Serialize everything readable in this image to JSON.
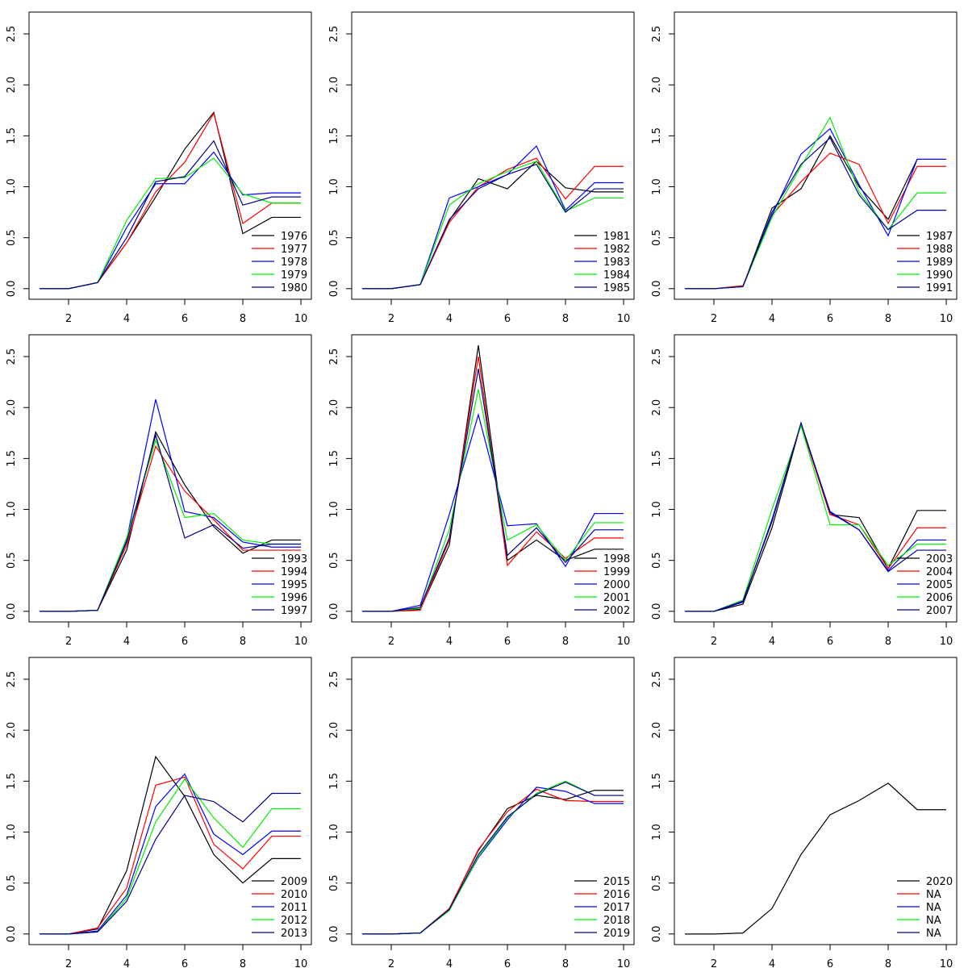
{
  "chart_data": [
    {
      "type": "line",
      "x": [
        1,
        2,
        3,
        4,
        5,
        6,
        7,
        8,
        9,
        10
      ],
      "xlim": [
        0.64,
        10.36
      ],
      "xticks": [
        2,
        4,
        6,
        8,
        10
      ],
      "ylim": [
        -0.104,
        2.714
      ],
      "yticks": [
        {
          "value": 0,
          "label": "0.0"
        },
        0.5,
        {
          "value": 1,
          "label": "1.0"
        },
        1.5,
        {
          "value": 2,
          "label": "2.0"
        },
        2.5
      ],
      "legend": "bottomright",
      "series": [
        {
          "name": "1976",
          "color": "#000000",
          "values": [
            0,
            0,
            0.06,
            0.45,
            0.9,
            1.37,
            1.73,
            0.54,
            0.7,
            0.7
          ]
        },
        {
          "name": "1977",
          "color": "#ff0000",
          "values": [
            0,
            0,
            0.06,
            0.45,
            0.95,
            1.24,
            1.72,
            0.64,
            0.84,
            0.84
          ]
        },
        {
          "name": "1978",
          "color": "#0000ff",
          "values": [
            0,
            0,
            0.06,
            0.6,
            1.03,
            1.03,
            1.34,
            0.92,
            0.94,
            0.94
          ]
        },
        {
          "name": "1979",
          "color": "#00ee00",
          "values": [
            0,
            0,
            0.06,
            0.67,
            1.08,
            1.09,
            1.28,
            0.93,
            0.84,
            0.84
          ]
        },
        {
          "name": "1980",
          "color": "#00008b",
          "values": [
            0,
            0,
            0.06,
            0.5,
            1.05,
            1.1,
            1.45,
            0.82,
            0.9,
            0.9
          ]
        }
      ]
    },
    {
      "type": "line",
      "x": [
        1,
        2,
        3,
        4,
        5,
        6,
        7,
        8,
        9,
        10
      ],
      "xlim": [
        0.64,
        10.36
      ],
      "xticks": [
        2,
        4,
        6,
        8,
        10
      ],
      "ylim": [
        -0.104,
        2.714
      ],
      "yticks": [
        {
          "value": 0,
          "label": "0.0"
        },
        0.5,
        {
          "value": 1,
          "label": "1.0"
        },
        1.5,
        {
          "value": 2,
          "label": "2.0"
        },
        2.5
      ],
      "legend": "bottomright",
      "series": [
        {
          "name": "1981",
          "color": "#000000",
          "values": [
            0,
            0,
            0.04,
            0.67,
            1.08,
            0.98,
            1.25,
            0.99,
            0.95,
            0.95
          ]
        },
        {
          "name": "1982",
          "color": "#ff0000",
          "values": [
            0,
            0,
            0.04,
            0.65,
            1.0,
            1.17,
            1.28,
            0.88,
            1.2,
            1.2
          ]
        },
        {
          "name": "1983",
          "color": "#0000ff",
          "values": [
            0,
            0,
            0.04,
            0.89,
            1.0,
            1.12,
            1.4,
            0.77,
            1.04,
            1.04
          ]
        },
        {
          "name": "1984",
          "color": "#00ee00",
          "values": [
            0,
            0,
            0.04,
            0.82,
            1.03,
            1.15,
            1.25,
            0.76,
            0.89,
            0.89
          ]
        },
        {
          "name": "1985",
          "color": "#00008b",
          "values": [
            0,
            0,
            0.04,
            0.68,
            0.98,
            1.12,
            1.22,
            0.75,
            0.98,
            0.98
          ]
        }
      ]
    },
    {
      "type": "line",
      "x": [
        1,
        2,
        3,
        4,
        5,
        6,
        7,
        8,
        9,
        10
      ],
      "xlim": [
        0.64,
        10.36
      ],
      "xticks": [
        2,
        4,
        6,
        8,
        10
      ],
      "ylim": [
        -0.104,
        2.714
      ],
      "yticks": [
        {
          "value": 0,
          "label": "0.0"
        },
        0.5,
        {
          "value": 1,
          "label": "1.0"
        },
        1.5,
        {
          "value": 2,
          "label": "2.0"
        },
        2.5
      ],
      "legend": "bottomright",
      "series": [
        {
          "name": "1987",
          "color": "#000000",
          "values": [
            0,
            0,
            0.02,
            0.79,
            0.98,
            1.5,
            1.0,
            0.68,
            1.27,
            1.27
          ]
        },
        {
          "name": "1988",
          "color": "#ff0000",
          "values": [
            0,
            0,
            0.03,
            0.72,
            1.05,
            1.33,
            1.22,
            0.64,
            1.2,
            1.2
          ]
        },
        {
          "name": "1989",
          "color": "#0000ff",
          "values": [
            0,
            0,
            0.02,
            0.72,
            1.32,
            1.57,
            1.02,
            0.52,
            1.27,
            1.27
          ]
        },
        {
          "name": "1990",
          "color": "#00ee00",
          "values": [
            0,
            0,
            0.02,
            0.7,
            1.2,
            1.68,
            0.95,
            0.58,
            0.94,
            0.94
          ]
        },
        {
          "name": "1991",
          "color": "#00008b",
          "values": [
            0,
            0,
            0.02,
            0.75,
            1.22,
            1.48,
            0.92,
            0.58,
            0.77,
            0.77
          ]
        }
      ]
    },
    {
      "type": "line",
      "x": [
        1,
        2,
        3,
        4,
        5,
        6,
        7,
        8,
        9,
        10
      ],
      "xlim": [
        0.64,
        10.36
      ],
      "xticks": [
        2,
        4,
        6,
        8,
        10
      ],
      "ylim": [
        -0.104,
        2.714
      ],
      "yticks": [
        {
          "value": 0,
          "label": "0.0"
        },
        0.5,
        {
          "value": 1,
          "label": "1.0"
        },
        1.5,
        {
          "value": 2,
          "label": "2.0"
        },
        2.5
      ],
      "legend": "bottomright",
      "series": [
        {
          "name": "1993",
          "color": "#000000",
          "values": [
            0,
            0,
            0.01,
            0.6,
            1.76,
            1.24,
            0.83,
            0.57,
            0.7,
            0.7
          ]
        },
        {
          "name": "1994",
          "color": "#ff0000",
          "values": [
            0,
            0,
            0.01,
            0.65,
            1.62,
            1.18,
            0.9,
            0.6,
            0.6,
            0.6
          ]
        },
        {
          "name": "1995",
          "color": "#0000ff",
          "values": [
            0,
            0,
            0.01,
            0.7,
            2.08,
            0.98,
            0.92,
            0.68,
            0.63,
            0.63
          ]
        },
        {
          "name": "1996",
          "color": "#00ee00",
          "values": [
            0,
            0,
            0.01,
            0.72,
            1.68,
            0.92,
            0.96,
            0.7,
            0.66,
            0.66
          ]
        },
        {
          "name": "1997",
          "color": "#00008b",
          "values": [
            0,
            0,
            0.01,
            0.68,
            1.73,
            0.72,
            0.85,
            0.62,
            0.66,
            0.66
          ]
        }
      ]
    },
    {
      "type": "line",
      "x": [
        1,
        2,
        3,
        4,
        5,
        6,
        7,
        8,
        9,
        10
      ],
      "xlim": [
        0.64,
        10.36
      ],
      "xticks": [
        2,
        4,
        6,
        8,
        10
      ],
      "ylim": [
        -0.104,
        2.714
      ],
      "yticks": [
        {
          "value": 0,
          "label": "0.0"
        },
        0.5,
        {
          "value": 1,
          "label": "1.0"
        },
        1.5,
        {
          "value": 2,
          "label": "2.0"
        },
        2.5
      ],
      "legend": "bottomright",
      "series": [
        {
          "name": "1998",
          "color": "#000000",
          "values": [
            0,
            0,
            0.02,
            0.65,
            2.61,
            0.5,
            0.7,
            0.5,
            0.61,
            0.61
          ]
        },
        {
          "name": "1999",
          "color": "#ff0000",
          "values": [
            0,
            0,
            0.01,
            0.7,
            2.5,
            0.45,
            0.78,
            0.52,
            0.72,
            0.72
          ]
        },
        {
          "name": "2000",
          "color": "#0000ff",
          "values": [
            0,
            0,
            0.06,
            0.95,
            1.93,
            0.84,
            0.86,
            0.44,
            0.96,
            0.96
          ]
        },
        {
          "name": "2001",
          "color": "#00ee00",
          "values": [
            0,
            0,
            0.03,
            0.8,
            2.18,
            0.7,
            0.85,
            0.5,
            0.87,
            0.87
          ]
        },
        {
          "name": "2002",
          "color": "#00008b",
          "values": [
            0,
            0,
            0.04,
            0.72,
            2.38,
            0.55,
            0.82,
            0.48,
            0.8,
            0.8
          ]
        }
      ]
    },
    {
      "type": "line",
      "x": [
        1,
        2,
        3,
        4,
        5,
        6,
        7,
        8,
        9,
        10
      ],
      "xlim": [
        0.64,
        10.36
      ],
      "xticks": [
        2,
        4,
        6,
        8,
        10
      ],
      "ylim": [
        -0.104,
        2.714
      ],
      "yticks": [
        {
          "value": 0,
          "label": "0.0"
        },
        0.5,
        {
          "value": 1,
          "label": "1.0"
        },
        1.5,
        {
          "value": 2,
          "label": "2.0"
        },
        2.5
      ],
      "legend": "bottomright",
      "series": [
        {
          "name": "2003",
          "color": "#000000",
          "values": [
            0,
            0,
            0.07,
            0.82,
            1.84,
            0.95,
            0.92,
            0.42,
            0.99,
            0.99
          ]
        },
        {
          "name": "2004",
          "color": "#ff0000",
          "values": [
            0,
            0,
            0.09,
            0.9,
            1.83,
            0.95,
            0.85,
            0.42,
            0.82,
            0.82
          ]
        },
        {
          "name": "2005",
          "color": "#0000ff",
          "values": [
            0,
            0,
            0.09,
            0.9,
            1.84,
            0.98,
            0.8,
            0.4,
            0.7,
            0.7
          ]
        },
        {
          "name": "2006",
          "color": "#00ee00",
          "values": [
            0,
            0,
            0.11,
            1.0,
            1.82,
            0.85,
            0.85,
            0.45,
            0.66,
            0.66
          ]
        },
        {
          "name": "2007",
          "color": "#00008b",
          "values": [
            0,
            0,
            0.1,
            0.88,
            1.85,
            0.97,
            0.8,
            0.39,
            0.6,
            0.6
          ]
        }
      ]
    },
    {
      "type": "line",
      "x": [
        1,
        2,
        3,
        4,
        5,
        6,
        7,
        8,
        9,
        10
      ],
      "xlim": [
        0.64,
        10.36
      ],
      "xticks": [
        2,
        4,
        6,
        8,
        10
      ],
      "ylim": [
        -0.104,
        2.714
      ],
      "yticks": [
        {
          "value": 0,
          "label": "0.0"
        },
        0.5,
        {
          "value": 1,
          "label": "1.0"
        },
        1.5,
        {
          "value": 2,
          "label": "2.0"
        },
        2.5
      ],
      "legend": "bottomright",
      "series": [
        {
          "name": "2009",
          "color": "#000000",
          "values": [
            0,
            0,
            0.05,
            0.62,
            1.74,
            1.35,
            0.78,
            0.5,
            0.74,
            0.74
          ]
        },
        {
          "name": "2010",
          "color": "#ff0000",
          "values": [
            0,
            0,
            0.06,
            0.45,
            1.46,
            1.54,
            0.88,
            0.64,
            0.96,
            0.96
          ]
        },
        {
          "name": "2011",
          "color": "#0000ff",
          "values": [
            0,
            0,
            0.03,
            0.38,
            1.25,
            1.57,
            0.98,
            0.78,
            1.01,
            1.01
          ]
        },
        {
          "name": "2012",
          "color": "#00ee00",
          "values": [
            0,
            0,
            0.02,
            0.35,
            1.1,
            1.52,
            1.14,
            0.85,
            1.23,
            1.23
          ]
        },
        {
          "name": "2013",
          "color": "#00008b",
          "values": [
            0,
            0,
            0.02,
            0.32,
            0.93,
            1.36,
            1.3,
            1.1,
            1.38,
            1.38
          ]
        }
      ]
    },
    {
      "type": "line",
      "x": [
        1,
        2,
        3,
        4,
        5,
        6,
        7,
        8,
        9,
        10
      ],
      "xlim": [
        0.64,
        10.36
      ],
      "xticks": [
        2,
        4,
        6,
        8,
        10
      ],
      "ylim": [
        -0.104,
        2.714
      ],
      "yticks": [
        {
          "value": 0,
          "label": "0.0"
        },
        0.5,
        {
          "value": 1,
          "label": "1.0"
        },
        1.5,
        {
          "value": 2,
          "label": "2.0"
        },
        2.5
      ],
      "legend": "bottomright",
      "series": [
        {
          "name": "2015",
          "color": "#000000",
          "values": [
            0,
            0,
            0.01,
            0.25,
            0.82,
            1.23,
            1.36,
            1.32,
            1.41,
            1.41
          ]
        },
        {
          "name": "2016",
          "color": "#ff0000",
          "values": [
            0,
            0,
            0.01,
            0.25,
            0.83,
            1.2,
            1.42,
            1.31,
            1.3,
            1.3
          ]
        },
        {
          "name": "2017",
          "color": "#0000ff",
          "values": [
            0,
            0,
            0.01,
            0.24,
            0.75,
            1.12,
            1.44,
            1.4,
            1.28,
            1.28
          ]
        },
        {
          "name": "2018",
          "color": "#00ee00",
          "values": [
            0,
            0,
            0.01,
            0.23,
            0.76,
            1.14,
            1.38,
            1.5,
            1.36,
            1.36
          ]
        },
        {
          "name": "2019",
          "color": "#00008b",
          "values": [
            0,
            0,
            0.01,
            0.24,
            0.78,
            1.15,
            1.37,
            1.49,
            1.36,
            1.36
          ]
        }
      ]
    },
    {
      "type": "line",
      "x": [
        1,
        2,
        3,
        4,
        5,
        6,
        7,
        8,
        9,
        10
      ],
      "xlim": [
        0.64,
        10.36
      ],
      "xticks": [
        2,
        4,
        6,
        8,
        10
      ],
      "ylim": [
        -0.104,
        2.714
      ],
      "yticks": [
        {
          "value": 0,
          "label": "0.0"
        },
        0.5,
        {
          "value": 1,
          "label": "1.0"
        },
        1.5,
        {
          "value": 2,
          "label": "2.0"
        },
        2.5
      ],
      "legend": "bottomright",
      "series": [
        {
          "name": "2020",
          "color": "#000000",
          "values": [
            0,
            0,
            0.01,
            0.25,
            0.78,
            1.17,
            1.31,
            1.48,
            1.22,
            1.22
          ]
        },
        {
          "name": "NA",
          "color": "#ff0000",
          "values": [
            null,
            null,
            null,
            null,
            null,
            null,
            null,
            null,
            null,
            null
          ]
        },
        {
          "name": "NA",
          "color": "#0000ff",
          "values": [
            null,
            null,
            null,
            null,
            null,
            null,
            null,
            null,
            null,
            null
          ]
        },
        {
          "name": "NA",
          "color": "#00ee00",
          "values": [
            null,
            null,
            null,
            null,
            null,
            null,
            null,
            null,
            null,
            null
          ]
        },
        {
          "name": "NA",
          "color": "#00008b",
          "values": [
            null,
            null,
            null,
            null,
            null,
            null,
            null,
            null,
            null,
            null
          ]
        }
      ]
    }
  ]
}
